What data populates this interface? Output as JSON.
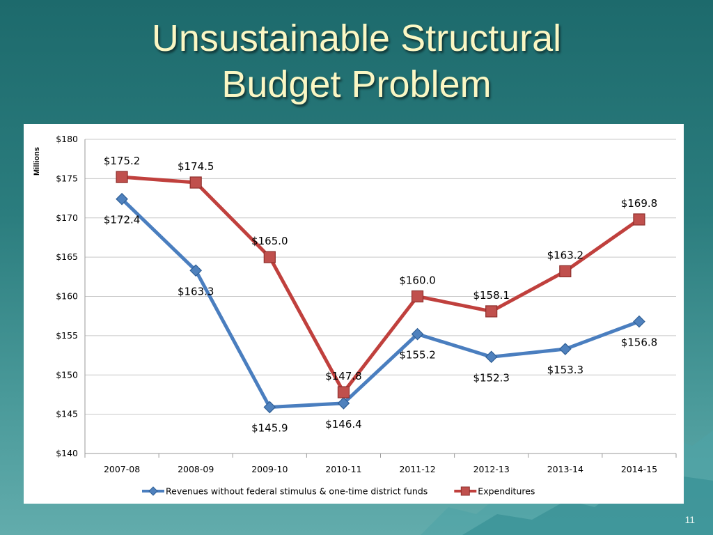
{
  "slide": {
    "title_line1": "Unsustainable Structural",
    "title_line2": "Budget Problem",
    "page_number": "11"
  },
  "chart_data": {
    "type": "line",
    "title": "",
    "ylabel": "Millions",
    "xlabel": "",
    "categories": [
      "2007-08",
      "2008-09",
      "2009-10",
      "2010-11",
      "2011-12",
      "2012-13",
      "2013-14",
      "2014-15"
    ],
    "ylim": [
      140,
      180
    ],
    "yticks": [
      140,
      145,
      150,
      155,
      160,
      165,
      170,
      175,
      180
    ],
    "ytick_labels": [
      "$140",
      "$145",
      "$150",
      "$155",
      "$160",
      "$165",
      "$170",
      "$175",
      "$180"
    ],
    "grid": true,
    "legend_position": "bottom",
    "series": [
      {
        "name": "Revenues without federal stimulus & one-time district funds",
        "color": "#4a7ebf",
        "marker": "diamond",
        "values": [
          172.4,
          163.3,
          145.9,
          146.4,
          155.2,
          152.3,
          153.3,
          156.8
        ],
        "labels": [
          "$172.4",
          "$163.3",
          "$145.9",
          "$146.4",
          "$155.2",
          "$152.3",
          "$153.3",
          "$156.8"
        ]
      },
      {
        "name": "Expenditures",
        "color": "#c0403d",
        "marker": "square",
        "values": [
          175.2,
          174.5,
          165.0,
          147.8,
          160.0,
          158.1,
          163.2,
          169.8
        ],
        "labels": [
          "$175.2",
          "$174.5",
          "$165.0",
          "$147.8",
          "$160.0",
          "$158.1",
          "$163.2",
          "$169.8"
        ]
      }
    ]
  }
}
